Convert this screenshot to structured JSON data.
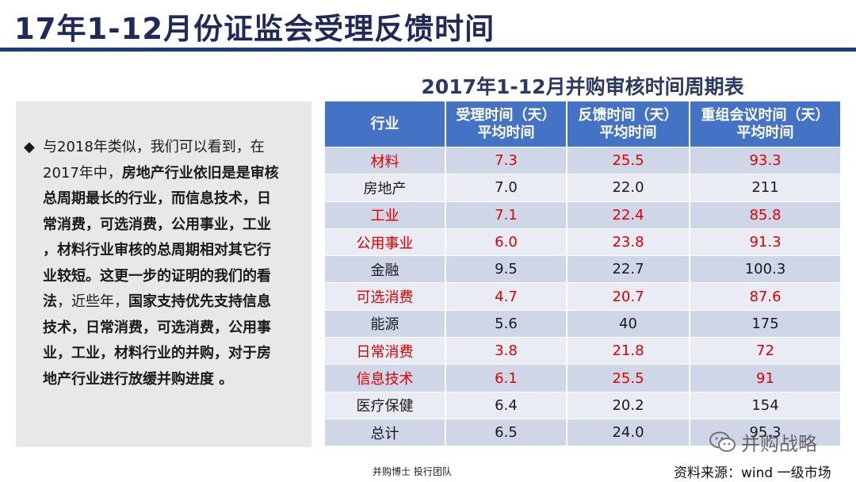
{
  "page_title": "17年1-12月份证监会受理反馈时间",
  "left_text": {
    "line1": "与2018年类似，我们可以看到，在",
    "line2_normal": "2017年中，",
    "line2_bold": "房地产行业依旧是是审核",
    "line3": "总周期最长的行业，而信息技术，日",
    "line4": "常消费，可选消费，公用事业，工业",
    "line5": "，材料行业审核的总周期相对其它行",
    "line6": "业较短。这更一步的证明的我们的看",
    "line7_bold1": "法",
    "line7_normal": "，近些年，",
    "line7_bold2": "国家支持优先支持信息",
    "line8": "技术，日常消费，可选消费，公用事",
    "line9": "业，工业，材料行业的并购，对于房",
    "line10": "地产行业进行放缓并购进度 。"
  },
  "table_title": "2017年1-12月并购审核时间周期表",
  "table": {
    "headers": [
      {
        "l1": "行业",
        "l2": ""
      },
      {
        "l1": "受理时间（天）",
        "l2": "平均时间"
      },
      {
        "l1": "反馈时间（天）",
        "l2": "平均时间"
      },
      {
        "l1": "重组会议时间（天）",
        "l2": "平均时间"
      }
    ],
    "rows": [
      {
        "industry": "材料",
        "accept": "7.3",
        "feedback": "25.5",
        "meeting": "93.3",
        "highlight": true
      },
      {
        "industry": "房地产",
        "accept": "7.0",
        "feedback": "22.0",
        "meeting": "211",
        "highlight": false
      },
      {
        "industry": "工业",
        "accept": "7.1",
        "feedback": "22.4",
        "meeting": "85.8",
        "highlight": true
      },
      {
        "industry": "公用事业",
        "accept": "6.0",
        "feedback": "23.8",
        "meeting": "91.3",
        "highlight": true
      },
      {
        "industry": "金融",
        "accept": "9.5",
        "feedback": "22.7",
        "meeting": "100.3",
        "highlight": false
      },
      {
        "industry": "可选消费",
        "accept": "4.7",
        "feedback": "20.7",
        "meeting": "87.6",
        "highlight": true
      },
      {
        "industry": "能源",
        "accept": "5.6",
        "feedback": "40",
        "meeting": "175",
        "highlight": false
      },
      {
        "industry": "日常消费",
        "accept": "3.8",
        "feedback": "21.8",
        "meeting": "72",
        "highlight": true
      },
      {
        "industry": "信息技术",
        "accept": "6.1",
        "feedback": "25.5",
        "meeting": "91",
        "highlight": true
      },
      {
        "industry": "医疗保健",
        "accept": "6.4",
        "feedback": "20.2",
        "meeting": "154",
        "highlight": false
      },
      {
        "industry": "总计",
        "accept": "6.5",
        "feedback": "24.0",
        "meeting": "95.3",
        "highlight": false
      }
    ]
  },
  "footer_team": "并购博士 投行团队",
  "watermark": "并购战略",
  "source": "资料来源：wind 一级市场",
  "colors": {
    "title": "#1f2a5a",
    "rule": "#1f3c7a",
    "header_bg": "#4472c4",
    "highlight_text": "#e00000"
  }
}
